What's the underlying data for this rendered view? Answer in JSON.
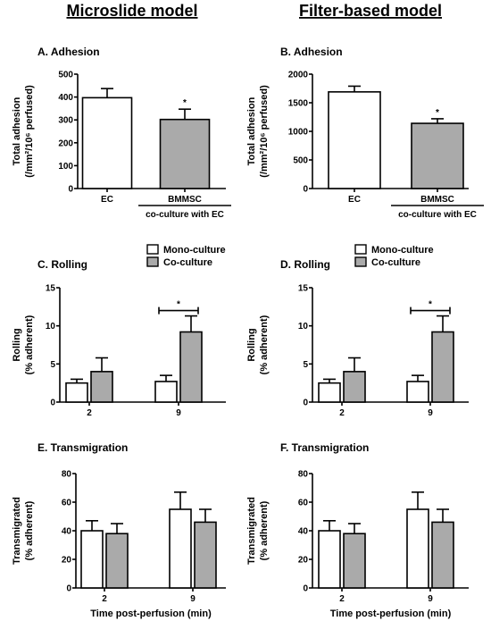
{
  "columns": [
    "Microslide model",
    "Filter-based model"
  ],
  "colors": {
    "mono": "#ffffff",
    "co": "#aaaaaa",
    "stroke": "#000000"
  },
  "legend": {
    "mono": "Mono-culture",
    "co": "Co-culture"
  },
  "chart_data": [
    {
      "id": "A",
      "type": "bar",
      "title": "A.  Adhesion",
      "ylabel": [
        "Total adhesion",
        "(/mm²/10⁶ perfused)"
      ],
      "ylim": [
        0,
        500
      ],
      "yticks": [
        0,
        100,
        200,
        300,
        400,
        500
      ],
      "categories": [
        "EC",
        "BMMSC"
      ],
      "category_sublabel": "co-culture with EC",
      "values": [
        397,
        302
      ],
      "errors": [
        40,
        45
      ],
      "fills": [
        "#ffffff",
        "#aaaaaa"
      ],
      "significance": [
        {
          "index": 1,
          "label": "*"
        }
      ]
    },
    {
      "id": "B",
      "type": "bar",
      "title": "B.  Adhesion",
      "ylabel": [
        "Total adhesion",
        "(/mm²/10⁶ perfused)"
      ],
      "ylim": [
        0,
        2000
      ],
      "yticks": [
        0,
        500,
        1000,
        1500,
        2000
      ],
      "categories": [
        "EC",
        "BMMSC"
      ],
      "category_sublabel": "co-culture with EC",
      "values": [
        1690,
        1140
      ],
      "errors": [
        100,
        80
      ],
      "fills": [
        "#ffffff",
        "#aaaaaa"
      ],
      "significance": [
        {
          "index": 1,
          "label": "*"
        }
      ]
    },
    {
      "id": "C",
      "type": "bar",
      "title": "C.  Rolling",
      "ylabel": [
        "Rolling",
        "(% adherent)"
      ],
      "xlabel": "",
      "ylim": [
        0,
        15
      ],
      "yticks": [
        0,
        5,
        10,
        15
      ],
      "categories": [
        "2",
        "9"
      ],
      "series": [
        {
          "name": "Mono-culture",
          "values": [
            2.5,
            2.7
          ],
          "errors": [
            0.5,
            0.8
          ]
        },
        {
          "name": "Co-culture",
          "values": [
            4.0,
            9.2
          ],
          "errors": [
            1.8,
            2.1
          ]
        }
      ],
      "bracket": {
        "category": 1,
        "label": "*"
      }
    },
    {
      "id": "D",
      "type": "bar",
      "title": "D.  Rolling",
      "ylabel": [
        "Rolling",
        "(% adherent)"
      ],
      "xlabel": "",
      "ylim": [
        0,
        15
      ],
      "yticks": [
        0,
        5,
        10,
        15
      ],
      "categories": [
        "2",
        "9"
      ],
      "series": [
        {
          "name": "Mono-culture",
          "values": [
            2.5,
            2.7
          ],
          "errors": [
            0.5,
            0.8
          ]
        },
        {
          "name": "Co-culture",
          "values": [
            4.0,
            9.2
          ],
          "errors": [
            1.8,
            2.1
          ]
        }
      ],
      "bracket": {
        "category": 1,
        "label": "*"
      }
    },
    {
      "id": "E",
      "type": "bar",
      "title": "E.  Transmigration",
      "ylabel": [
        "Transmigrated",
        "(% adherent)"
      ],
      "xlabel": "Time post-perfusion (min)",
      "ylim": [
        0,
        80
      ],
      "yticks": [
        0,
        20,
        40,
        60,
        80
      ],
      "categories": [
        "2",
        "9"
      ],
      "series": [
        {
          "name": "Mono-culture",
          "values": [
            40,
            55
          ],
          "errors": [
            7,
            12
          ]
        },
        {
          "name": "Co-culture",
          "values": [
            38,
            46
          ],
          "errors": [
            7,
            9
          ]
        }
      ]
    },
    {
      "id": "F",
      "type": "bar",
      "title": "F.  Transmigration",
      "ylabel": [
        "Transmigrated",
        "(% adherent)"
      ],
      "xlabel": "Time post-perfusion (min)",
      "ylim": [
        0,
        80
      ],
      "yticks": [
        0,
        20,
        40,
        60,
        80
      ],
      "categories": [
        "2",
        "9"
      ],
      "series": [
        {
          "name": "Mono-culture",
          "values": [
            40,
            55
          ],
          "errors": [
            7,
            12
          ]
        },
        {
          "name": "Co-culture",
          "values": [
            38,
            46
          ],
          "errors": [
            7,
            9
          ]
        }
      ]
    }
  ]
}
